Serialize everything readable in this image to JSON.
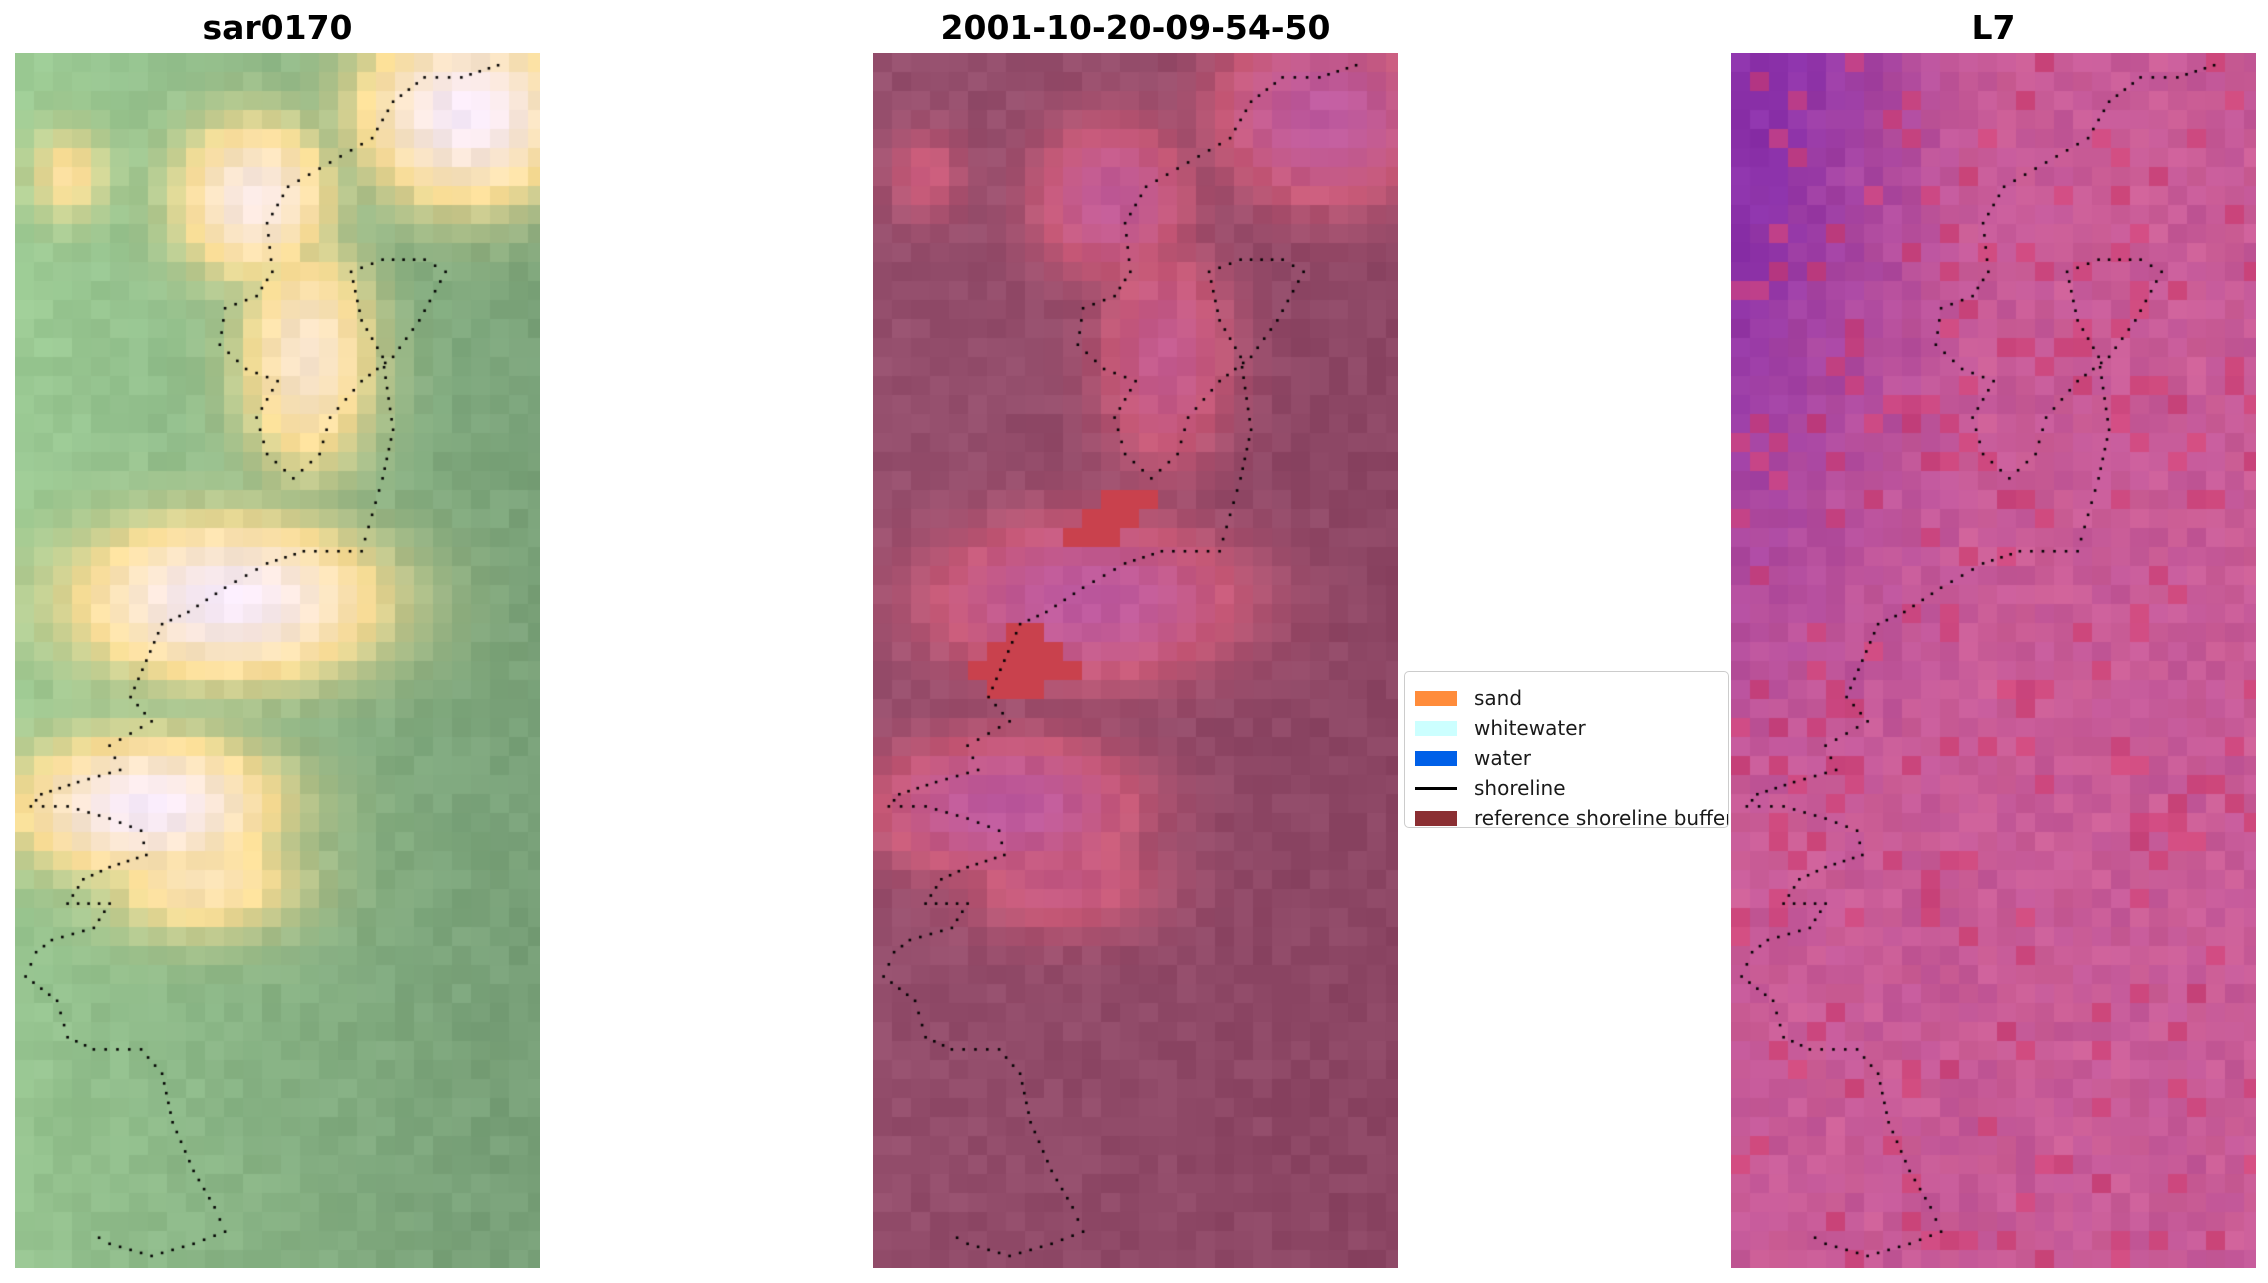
{
  "panels": [
    {
      "title": "sar0170",
      "palette": "green"
    },
    {
      "title": "2001-10-20-09-54-50",
      "palette": "mauve"
    },
    {
      "title": "L7",
      "palette": "pink"
    }
  ],
  "legend": {
    "items": [
      {
        "label": "sand",
        "color": "#ff8c3b",
        "kind": "patch"
      },
      {
        "label": "whitewater",
        "color": "#ccffff",
        "kind": "patch"
      },
      {
        "label": "water",
        "color": "#0060e8",
        "kind": "patch"
      },
      {
        "label": "shoreline",
        "color": "#000000",
        "kind": "line"
      },
      {
        "label": "reference shoreline buffer",
        "color": "#8b2f33",
        "kind": "patch"
      }
    ]
  },
  "colors": {
    "background": "#ffffff",
    "shoreline_dots": "#000000",
    "buffer": "#c9414d"
  }
}
